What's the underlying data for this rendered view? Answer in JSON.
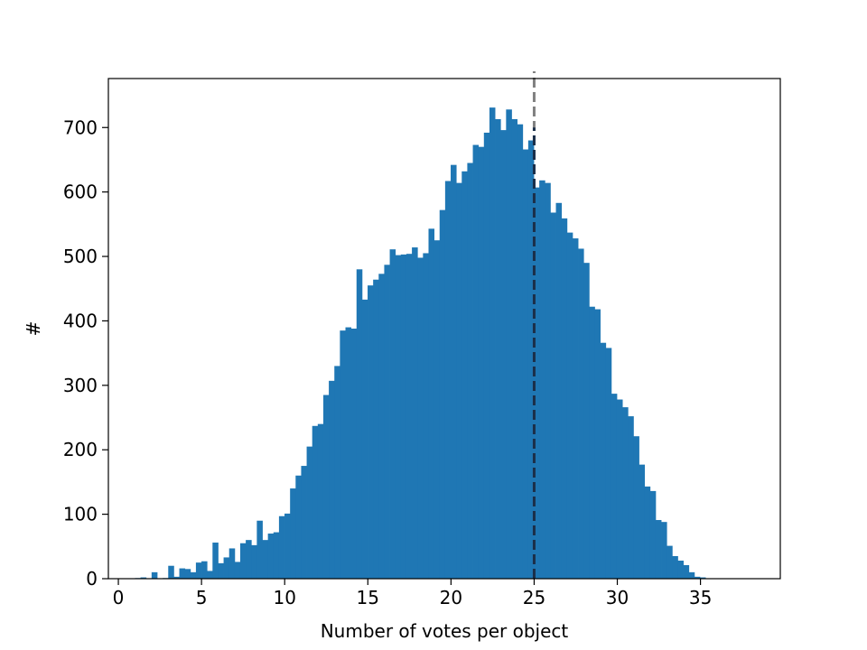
{
  "chart_data": {
    "type": "bar",
    "subtype": "histogram",
    "title": "",
    "xlabel": "Number of votes per object",
    "ylabel": "#",
    "xlim": [
      -0.6,
      39.8
    ],
    "ylim": [
      0,
      776
    ],
    "xticks": [
      0,
      5,
      10,
      15,
      20,
      25,
      30,
      35
    ],
    "yticks": [
      0,
      100,
      200,
      300,
      400,
      500,
      600,
      700
    ],
    "bar_color": "#1f77b4",
    "grid": false,
    "bin_width": 0.333,
    "x_start": 1.0,
    "values": [
      1,
      2,
      0,
      10,
      0,
      1,
      20,
      3,
      16,
      15,
      10,
      25,
      27,
      12,
      56,
      24,
      33,
      47,
      26,
      55,
      60,
      52,
      90,
      60,
      70,
      72,
      97,
      101,
      140,
      160,
      175,
      205,
      237,
      240,
      285,
      307,
      330,
      385,
      390,
      388,
      480,
      433,
      455,
      464,
      473,
      487,
      511,
      502,
      503,
      504,
      514,
      498,
      505,
      543,
      525,
      572,
      617,
      642,
      614,
      632,
      645,
      673,
      670,
      692,
      731,
      713,
      696,
      728,
      713,
      705,
      666,
      680,
      607,
      618,
      614,
      568,
      583,
      559,
      537,
      528,
      512,
      490,
      422,
      418,
      366,
      358,
      287,
      278,
      266,
      252,
      221,
      177,
      143,
      136,
      91,
      88,
      51,
      35,
      28,
      21,
      10,
      3,
      2
    ],
    "reference_lines": [
      {
        "x": 25.0,
        "style": "dashed",
        "color": "#808080",
        "y_range": [
          0,
          776
        ]
      },
      {
        "x": 25.0,
        "style": "dashed",
        "color": "#1a2f4a",
        "y_range": [
          0,
          700
        ]
      }
    ]
  }
}
